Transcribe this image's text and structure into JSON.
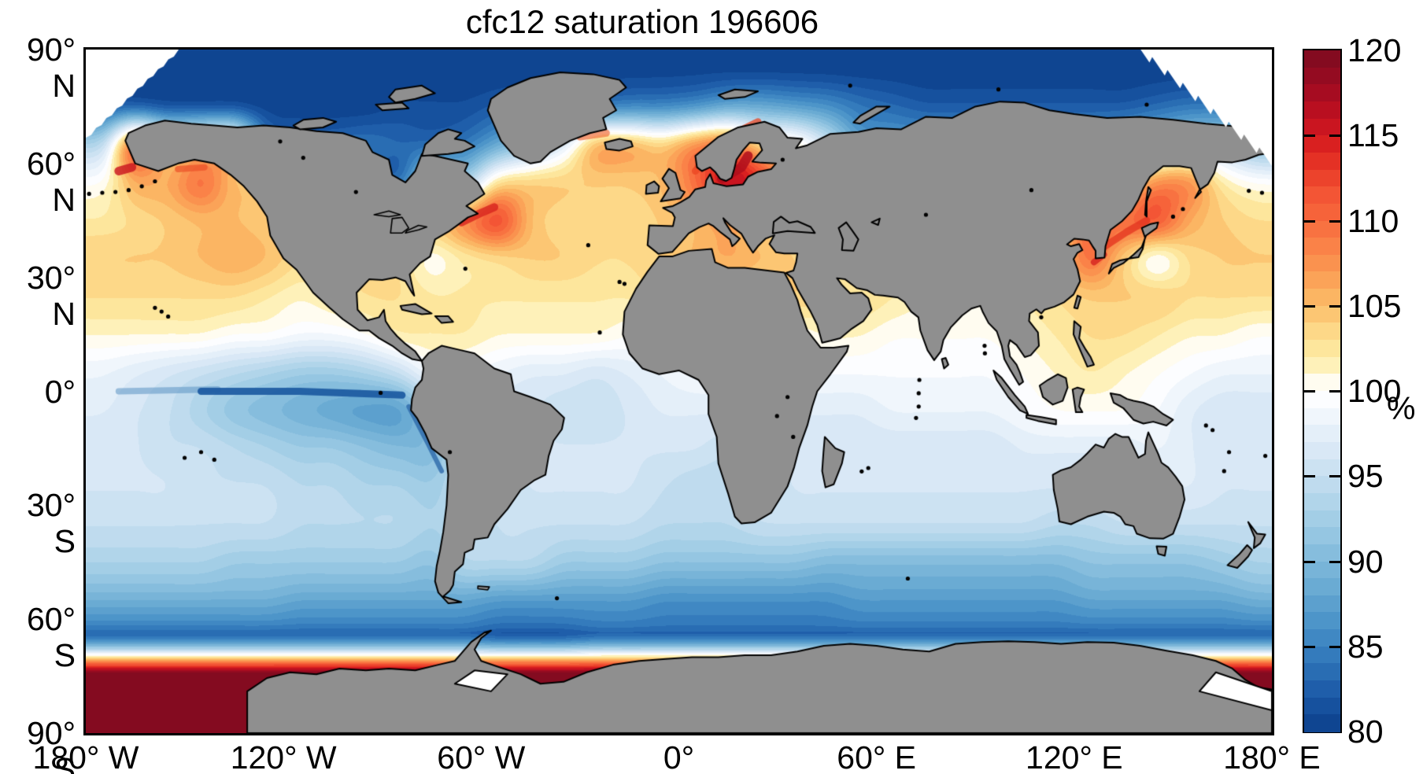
{
  "title": "cfc12 saturation 196606",
  "axes": {
    "y_ticks": [
      {
        "lat": 90,
        "label": "90° N"
      },
      {
        "lat": 60,
        "label": "60° N"
      },
      {
        "lat": 30,
        "label": "30° N"
      },
      {
        "lat": 0,
        "label": "0°"
      },
      {
        "lat": -30,
        "label": "30° S"
      },
      {
        "lat": -60,
        "label": "60° S"
      },
      {
        "lat": -90,
        "label": "90° S"
      }
    ],
    "x_ticks": [
      {
        "lon": -180,
        "label": "180° W"
      },
      {
        "lon": -120,
        "label": "120° W"
      },
      {
        "lon": -60,
        "label": "60° W"
      },
      {
        "lon": 0,
        "label": "0°"
      },
      {
        "lon": 60,
        "label": "60° E"
      },
      {
        "lon": 120,
        "label": "120° E"
      },
      {
        "lon": 180,
        "label": "180° E"
      }
    ]
  },
  "colorbar": {
    "min": 80,
    "max": 120,
    "band_size": 1,
    "tick_values": [
      120,
      115,
      110,
      105,
      100,
      95,
      90,
      85,
      80
    ],
    "tick_labels": [
      "120",
      "115",
      "110",
      "105",
      "100",
      "95",
      "90",
      "85",
      "80"
    ],
    "unit_label": "%"
  },
  "map": {
    "land_color": "#8f8f8f",
    "coast_color": "#000000",
    "background_color": "#ffffff"
  },
  "chart_data": {
    "type": "heatmap",
    "title": "cfc12 saturation 196606",
    "variable": "cfc12 saturation",
    "time": "196606",
    "units": "%",
    "projection": "equirectangular",
    "lon_range": [
      -180,
      180
    ],
    "lat_range": [
      -90,
      90
    ],
    "colorbar_range": [
      80,
      120
    ],
    "colormap_stops": [
      [
        80,
        "#0b3f8a"
      ],
      [
        82,
        "#1a57a5"
      ],
      [
        84,
        "#2e74b8"
      ],
      [
        86,
        "#468fc6"
      ],
      [
        88,
        "#63a6d1"
      ],
      [
        90,
        "#7fb8da"
      ],
      [
        92,
        "#9ccae4"
      ],
      [
        94,
        "#b8d8ec"
      ],
      [
        96,
        "#d3e5f4"
      ],
      [
        98,
        "#eaf2fa"
      ],
      [
        99.5,
        "#fcfdff"
      ],
      [
        100.3,
        "#ffffff"
      ],
      [
        101,
        "#fef6cb"
      ],
      [
        102,
        "#fdeca6"
      ],
      [
        103,
        "#fde092"
      ],
      [
        104,
        "#fccf7d"
      ],
      [
        105,
        "#fbbd69"
      ],
      [
        106,
        "#fbac5d"
      ],
      [
        107,
        "#fa9a52"
      ],
      [
        108,
        "#fa8a4b"
      ],
      [
        109,
        "#f97a44"
      ],
      [
        110,
        "#f76a3d"
      ],
      [
        111.5,
        "#f35535"
      ],
      [
        113,
        "#e93a28"
      ],
      [
        114.5,
        "#d92020"
      ],
      [
        116,
        "#c21020"
      ],
      [
        117.5,
        "#a60c21"
      ],
      [
        119,
        "#8b0b21"
      ],
      [
        120,
        "#7c0a1f"
      ]
    ],
    "grid": {
      "lat_centers": [
        85,
        75,
        65,
        55,
        45,
        35,
        25,
        15,
        5,
        -5,
        -15,
        -25,
        -35,
        -45,
        -55,
        -65,
        -75,
        -85
      ],
      "lon_centers": [
        -175,
        -165,
        -155,
        -145,
        -135,
        -125,
        -115,
        -105,
        -95,
        -85,
        -75,
        -65,
        -55,
        -45,
        -35,
        -25,
        -15,
        -5,
        5,
        15,
        25,
        35,
        45,
        55,
        65,
        75,
        85,
        95,
        105,
        115,
        125,
        135,
        145,
        155,
        165,
        175
      ],
      "values": [
        [
          80,
          80,
          80,
          80,
          80,
          80,
          80,
          80,
          80,
          80,
          80,
          80,
          80,
          80,
          80,
          80,
          80,
          80,
          80,
          80,
          80,
          80,
          80,
          80,
          80,
          80,
          80,
          80,
          80,
          80,
          80,
          80,
          80,
          80,
          80,
          80
        ],
        [
          82,
          82,
          81,
          81,
          81,
          80,
          80,
          80,
          80,
          81,
          81,
          81,
          82,
          83,
          83,
          84,
          85,
          85,
          86,
          88,
          88,
          87,
          86,
          84,
          83,
          82,
          82,
          82,
          82,
          82,
          82,
          82,
          83,
          84,
          84,
          83
        ],
        [
          94,
          112,
          102,
          104,
          104,
          86,
          84,
          84,
          84,
          83,
          83,
          84,
          88,
          92,
          97,
          106,
          106,
          104,
          108,
          110,
          103,
          102,
          96,
          88,
          88,
          88,
          88,
          88,
          88,
          88,
          88,
          90,
          92,
          94,
          94,
          90
        ],
        [
          100,
          106,
          106,
          110,
          105,
          104,
          102,
          100,
          86,
          83,
          96,
          93,
          103,
          104,
          104,
          104,
          104,
          105,
          110,
          117,
          114,
          102,
          100,
          100,
          100,
          100,
          100,
          100,
          100,
          100,
          101,
          102,
          108,
          108,
          102,
          100
        ],
        [
          102,
          103,
          104,
          105,
          105,
          104,
          104,
          104,
          104,
          104,
          104,
          108,
          113,
          105,
          103,
          103,
          103,
          104,
          105,
          107,
          104,
          102,
          102,
          102,
          102,
          102,
          102,
          102,
          102,
          103,
          110,
          110,
          112,
          106,
          104,
          103
        ],
        [
          104,
          104,
          104,
          105,
          106,
          105,
          103,
          103,
          103,
          103,
          100,
          102,
          103,
          104,
          104,
          103,
          103,
          104,
          105,
          106,
          105,
          104,
          102,
          102,
          102,
          102,
          102,
          102,
          103,
          104,
          110,
          104,
          99,
          103,
          104,
          104
        ],
        [
          103,
          103,
          103,
          103,
          103,
          102,
          101,
          102,
          103,
          103,
          102,
          102,
          102,
          102,
          102,
          102,
          102,
          103,
          103,
          103,
          103,
          104,
          103,
          103,
          102,
          101,
          101,
          101,
          102,
          103,
          104,
          104,
          104,
          103,
          103,
          103
        ],
        [
          101,
          101,
          101,
          101,
          100,
          100,
          99,
          99,
          100,
          102,
          102,
          102,
          101,
          101,
          101,
          101,
          100,
          100,
          100,
          100,
          100,
          100,
          101,
          101,
          100,
          100,
          100,
          100,
          101,
          102,
          103,
          103,
          102,
          101,
          101,
          100
        ],
        [
          98,
          97,
          96,
          95,
          94,
          93,
          92,
          92,
          93,
          95,
          99,
          99,
          98,
          97,
          97,
          96,
          97,
          98,
          99,
          99,
          99,
          99,
          99,
          99,
          99,
          99,
          99,
          99,
          100,
          101,
          102,
          101,
          100,
          99,
          98,
          98
        ],
        [
          97,
          96,
          95,
          93,
          91,
          90,
          89,
          88,
          87,
          87,
          92,
          96,
          96,
          96,
          95,
          95,
          96,
          97,
          97,
          97,
          97,
          97,
          97,
          97,
          98,
          98,
          98,
          98,
          99,
          100,
          100,
          100,
          99,
          97,
          96,
          96
        ],
        [
          96,
          96,
          95,
          95,
          94,
          93,
          92,
          92,
          91,
          90,
          90,
          95,
          95,
          96,
          96,
          96,
          96,
          96,
          96,
          95,
          95,
          96,
          96,
          96,
          96,
          96,
          96,
          96,
          97,
          97,
          97,
          97,
          98,
          97,
          96,
          96
        ],
        [
          96,
          96,
          96,
          95,
          95,
          95,
          94,
          94,
          93,
          93,
          92,
          95,
          95,
          96,
          96,
          96,
          96,
          95,
          94,
          94,
          95,
          96,
          96,
          96,
          96,
          96,
          96,
          96,
          96,
          96,
          96,
          96,
          97,
          97,
          96,
          96
        ],
        [
          95,
          95,
          95,
          95,
          95,
          95,
          94,
          94,
          94,
          94,
          93,
          94,
          95,
          95,
          95,
          95,
          95,
          94,
          94,
          94,
          95,
          95,
          95,
          95,
          95,
          95,
          95,
          95,
          95,
          94,
          94,
          95,
          95,
          95,
          95,
          95
        ],
        [
          93,
          93,
          93,
          93,
          92,
          92,
          92,
          92,
          92,
          92,
          91,
          94,
          94,
          94,
          92,
          92,
          92,
          91,
          91,
          91,
          91,
          91,
          90,
          90,
          90,
          90,
          90,
          90,
          90,
          90,
          91,
          91,
          91,
          91,
          92,
          93
        ],
        [
          89,
          89,
          89,
          89,
          89,
          89,
          88,
          88,
          88,
          88,
          88,
          88,
          87,
          87,
          87,
          87,
          87,
          86,
          86,
          86,
          86,
          86,
          86,
          87,
          87,
          87,
          87,
          87,
          87,
          87,
          88,
          88,
          88,
          88,
          88,
          89
        ],
        [
          82,
          82,
          82,
          82,
          82,
          82,
          82,
          82,
          82,
          82,
          82,
          82,
          81,
          81,
          81,
          82,
          82,
          82,
          82,
          82,
          82,
          82,
          82,
          82,
          82,
          82,
          82,
          82,
          82,
          82,
          82,
          82,
          82,
          82,
          82,
          82
        ],
        [
          null,
          null,
          null,
          null,
          null,
          null,
          null,
          null,
          null,
          null,
          null,
          null,
          null,
          null,
          null,
          null,
          null,
          null,
          null,
          null,
          null,
          null,
          null,
          null,
          null,
          null,
          null,
          null,
          null,
          null,
          null,
          null,
          null,
          null,
          null,
          null
        ],
        [
          null,
          null,
          null,
          null,
          null,
          null,
          null,
          null,
          null,
          null,
          null,
          null,
          null,
          null,
          null,
          null,
          null,
          null,
          null,
          null,
          null,
          null,
          null,
          null,
          null,
          null,
          null,
          null,
          null,
          null,
          null,
          null,
          null,
          null,
          null,
          null
        ]
      ]
    },
    "legend_position": "right colorbar",
    "grid_lines": false
  }
}
